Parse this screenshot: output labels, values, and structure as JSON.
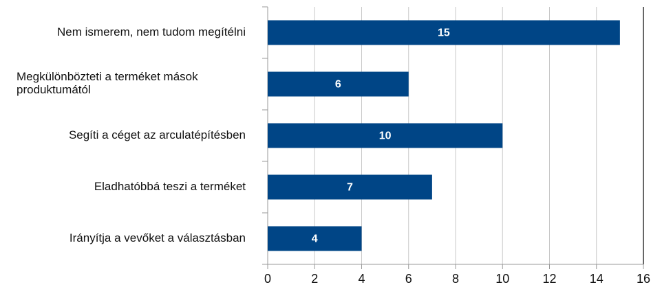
{
  "chart_data": {
    "type": "bar",
    "orientation": "horizontal",
    "categories": [
      "Nem ismerem, nem tudom megítélni",
      "Megkülönbözteti a terméket mások\nproduktumától",
      "Segíti a céget az arculatépítésben",
      "Eladhatóbbá teszi a terméket",
      "Irányítja a vevőket a választásban"
    ],
    "values": [
      15,
      6,
      10,
      7,
      4
    ],
    "color": "#004586",
    "xlim": [
      0,
      16
    ],
    "xticks": [
      0,
      2,
      4,
      6,
      8,
      10,
      12,
      14,
      16
    ],
    "grid": true
  }
}
